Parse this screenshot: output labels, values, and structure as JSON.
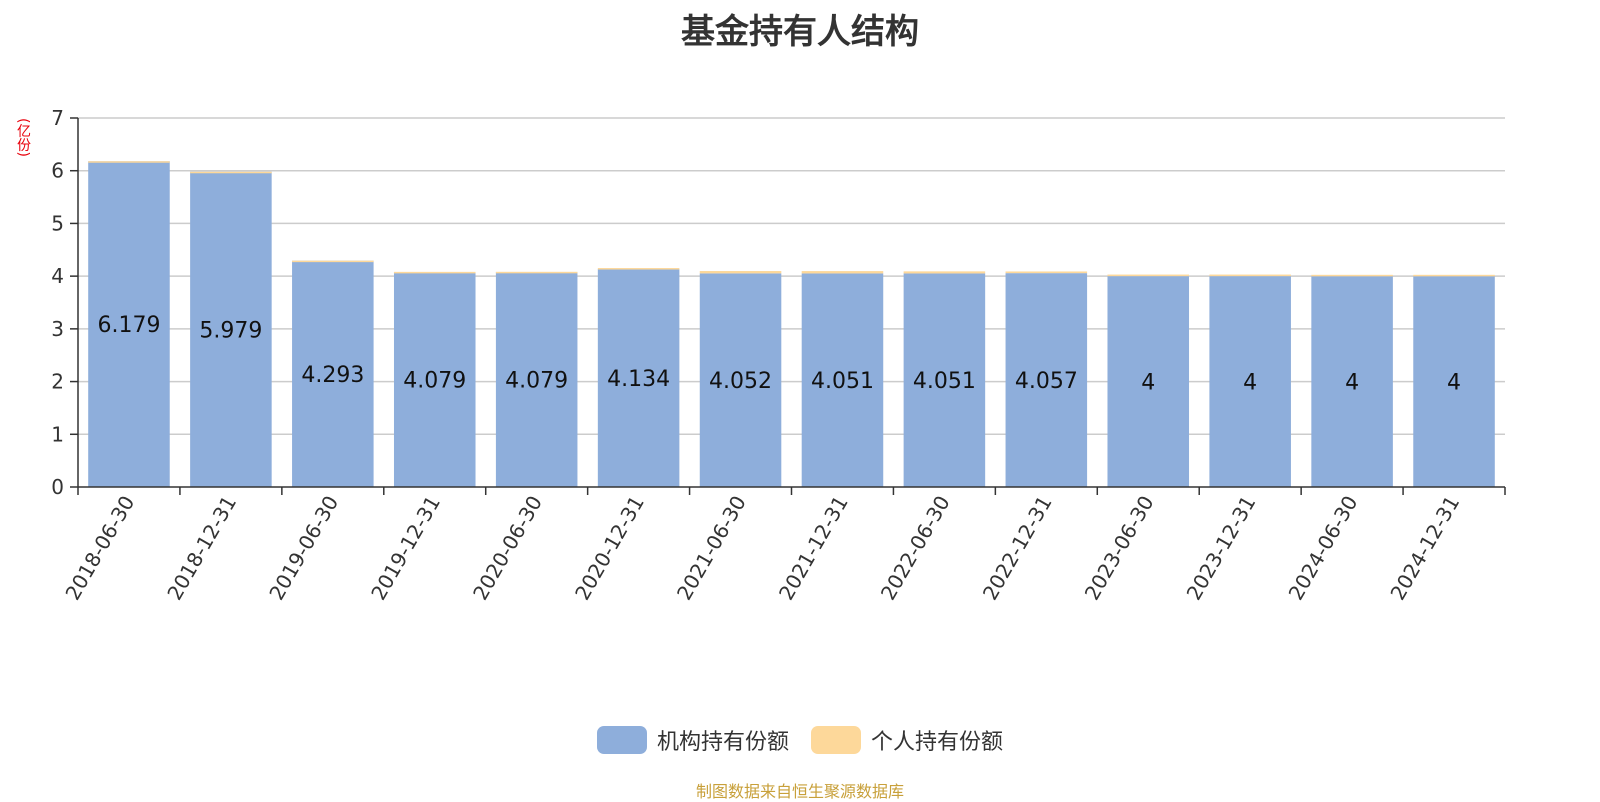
{
  "chart_data": {
    "type": "bar",
    "stacked": true,
    "title": "基金持有人结构",
    "ylabel": "(亿份)",
    "ylim": [
      0,
      7
    ],
    "yticks": [
      0,
      1,
      2,
      3,
      4,
      5,
      6,
      7
    ],
    "grid": true,
    "legend_position": "bottom",
    "categories": [
      "2018-06-30",
      "2018-12-31",
      "2019-06-30",
      "2019-12-31",
      "2020-06-30",
      "2020-12-31",
      "2021-06-30",
      "2021-12-31",
      "2022-06-30",
      "2022-12-31",
      "2023-06-30",
      "2023-12-31",
      "2024-06-30",
      "2024-12-31"
    ],
    "series": [
      {
        "name": "机构持有份额",
        "color": "#8eaedb",
        "values": [
          6.179,
          5.979,
          4.293,
          4.079,
          4.079,
          4.134,
          4.052,
          4.051,
          4.051,
          4.057,
          4,
          4,
          4,
          4
        ],
        "labels": [
          "6.179",
          "5.979",
          "4.293",
          "4.079",
          "4.079",
          "4.134",
          "4.052",
          "4.051",
          "4.051",
          "4.057",
          "4",
          "4",
          "4",
          "4"
        ]
      },
      {
        "name": "个人持有份额",
        "color": "#fdd89a",
        "values": [
          0.001,
          0.001,
          0.001,
          0.002,
          0.003,
          0.02,
          0.045,
          0.045,
          0.04,
          0.032,
          0.03,
          0.03,
          0.025,
          0.025
        ]
      }
    ],
    "unit_color": "#e8000b",
    "source": "制图数据来自恒生聚源数据库",
    "source_color": "#c8a03a"
  }
}
